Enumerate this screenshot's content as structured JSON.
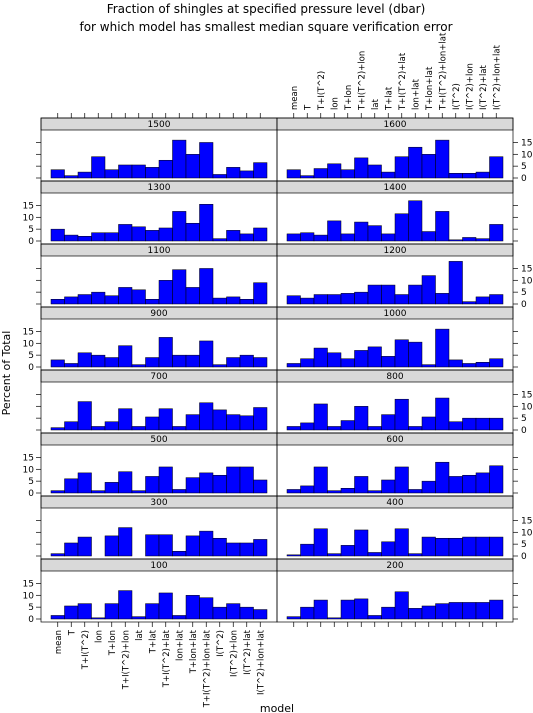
{
  "chart_data": {
    "type": "bar",
    "title": "Fraction of shingles at specified pressure level (dbar)",
    "subtitle": "for which model has smallest median square verification error",
    "xlabel": "model",
    "ylabel": "Percent of Total",
    "ylim": [
      0,
      19
    ],
    "yticks": [
      "0",
      "5",
      "10",
      "15"
    ],
    "categories": [
      "mean",
      "T",
      "T+I(T^2)",
      "lon",
      "T+lon",
      "T+I(T^2)+lon",
      "lat",
      "T+lat",
      "T+I(T^2)+lat",
      "lon+lat",
      "T+lon+lat",
      "T+I(T^2)+lon+lat",
      "I(T^2)",
      "I(T^2)+lon",
      "I(T^2)+lat",
      "I(T^2)+lon+lat"
    ],
    "panels": [
      {
        "label": "100",
        "values": [
          1.5,
          5.5,
          6.5,
          0.5,
          6.5,
          12.0,
          1.0,
          6.5,
          11.0,
          1.5,
          10.0,
          9.0,
          5.0,
          6.5,
          5.0,
          4.0
        ]
      },
      {
        "label": "200",
        "values": [
          1.0,
          5.0,
          8.0,
          0.5,
          8.0,
          8.5,
          1.5,
          5.0,
          11.5,
          4.5,
          5.5,
          6.5,
          7.0,
          7.0,
          7.0,
          8.0
        ]
      },
      {
        "label": "300",
        "values": [
          1.0,
          5.5,
          8.0,
          0.0,
          8.5,
          12.0,
          0.0,
          9.0,
          9.0,
          2.0,
          8.5,
          10.5,
          7.5,
          5.5,
          5.5,
          7.0
        ]
      },
      {
        "label": "400",
        "values": [
          0.5,
          5.0,
          11.5,
          1.0,
          4.5,
          11.0,
          1.5,
          6.0,
          11.5,
          1.0,
          8.0,
          7.5,
          7.5,
          8.0,
          8.0,
          8.0
        ]
      },
      {
        "label": "500",
        "values": [
          1.0,
          6.0,
          8.5,
          1.0,
          4.5,
          9.0,
          1.0,
          7.0,
          11.0,
          1.5,
          6.5,
          8.5,
          7.5,
          11.0,
          11.0,
          5.5
        ]
      },
      {
        "label": "600",
        "values": [
          1.5,
          3.0,
          11.0,
          1.0,
          2.0,
          7.0,
          1.0,
          5.5,
          11.0,
          1.5,
          5.0,
          13.0,
          7.0,
          7.5,
          8.5,
          11.5
        ]
      },
      {
        "label": "700",
        "values": [
          1.0,
          3.5,
          12.0,
          1.5,
          3.5,
          9.0,
          1.5,
          5.5,
          9.0,
          1.5,
          6.5,
          11.5,
          8.5,
          6.5,
          6.0,
          9.5
        ]
      },
      {
        "label": "800",
        "values": [
          1.5,
          3.0,
          11.0,
          1.5,
          4.0,
          10.0,
          1.5,
          6.5,
          13.0,
          1.5,
          5.5,
          13.5,
          3.5,
          5.0,
          5.0,
          5.0
        ]
      },
      {
        "label": "900",
        "values": [
          3.0,
          1.5,
          6.0,
          5.0,
          4.0,
          9.0,
          1.0,
          4.0,
          12.5,
          5.0,
          5.0,
          11.0,
          1.0,
          4.0,
          5.0,
          4.0
        ]
      },
      {
        "label": "1000",
        "values": [
          1.5,
          3.5,
          8.0,
          6.0,
          3.5,
          7.0,
          8.5,
          4.5,
          11.5,
          10.5,
          1.0,
          16.0,
          3.0,
          1.5,
          2.0,
          3.5
        ]
      },
      {
        "label": "1100",
        "values": [
          2.0,
          3.0,
          4.0,
          5.0,
          3.5,
          7.0,
          6.0,
          2.0,
          10.0,
          14.5,
          7.0,
          15.0,
          2.5,
          3.0,
          2.0,
          9.0
        ]
      },
      {
        "label": "1200",
        "values": [
          3.5,
          2.5,
          4.0,
          4.0,
          4.5,
          5.0,
          8.0,
          8.0,
          4.0,
          8.0,
          12.0,
          4.5,
          18.0,
          1.0,
          3.0,
          4.0
        ]
      },
      {
        "label": "1300",
        "values": [
          5.0,
          2.5,
          2.0,
          3.5,
          3.5,
          7.0,
          6.0,
          4.5,
          5.5,
          12.5,
          7.5,
          15.5,
          1.0,
          4.5,
          3.0,
          5.5
        ]
      },
      {
        "label": "1400",
        "values": [
          3.0,
          3.5,
          2.5,
          8.5,
          3.0,
          8.0,
          6.5,
          3.0,
          11.5,
          17.0,
          4.0,
          12.5,
          0.5,
          1.5,
          1.0,
          7.0
        ]
      },
      {
        "label": "1500",
        "values": [
          3.5,
          1.0,
          2.5,
          9.0,
          3.5,
          5.5,
          5.5,
          4.5,
          7.5,
          16.0,
          10.0,
          15.0,
          1.5,
          4.5,
          3.0,
          6.5
        ]
      },
      {
        "label": "1600",
        "values": [
          3.5,
          1.0,
          4.0,
          6.0,
          3.5,
          8.5,
          5.5,
          2.5,
          9.0,
          13.0,
          10.0,
          16.0,
          2.0,
          2.0,
          2.5,
          9.0
        ]
      }
    ]
  }
}
